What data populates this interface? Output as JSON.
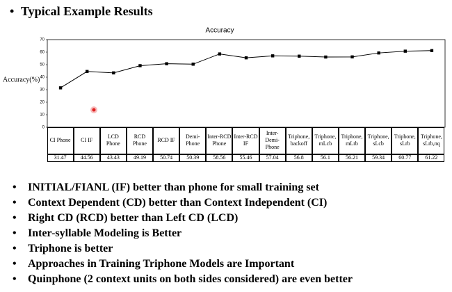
{
  "heading": "Typical Example Results",
  "chart_data": {
    "type": "line",
    "title": "Accuracy",
    "y_label": "Accuracy(%)",
    "categories": [
      "CI Phone",
      "CI IF",
      "LCD Phone",
      "RCD Phone",
      "RCD IF",
      "Demi-Phone",
      "Inter-RCD Phone",
      "Inter-RCD IF",
      "Inter-Demi-Phone",
      "Triphone, backoff",
      "Triphone, mLcb",
      "Triphone, mLrb",
      "Triphone, sLcb",
      "Triphone, sLrb",
      "Triphone, sLrb,nq"
    ],
    "values": [
      31.47,
      44.56,
      43.43,
      49.19,
      50.74,
      50.39,
      58.56,
      55.46,
      57.04,
      56.8,
      56.1,
      56.21,
      59.34,
      60.77,
      61.22
    ],
    "color": "#000000",
    "ylim": [
      0,
      70
    ],
    "yticks": [
      0,
      10,
      20,
      30,
      40,
      50,
      60,
      70
    ],
    "grid": false
  },
  "bullets": [
    "INITIAL/FIANL (IF) better than phone for small training set",
    "Context Dependent (CD) better than Context Independent (CI)",
    "Right CD (RCD) better than Left CD (LCD)",
    "Inter-syllable Modeling is Better",
    "Triphone is better",
    "Approaches in Training Triphone Models are Important",
    "Quinphone (2 context units on both sides considered) are even better"
  ]
}
